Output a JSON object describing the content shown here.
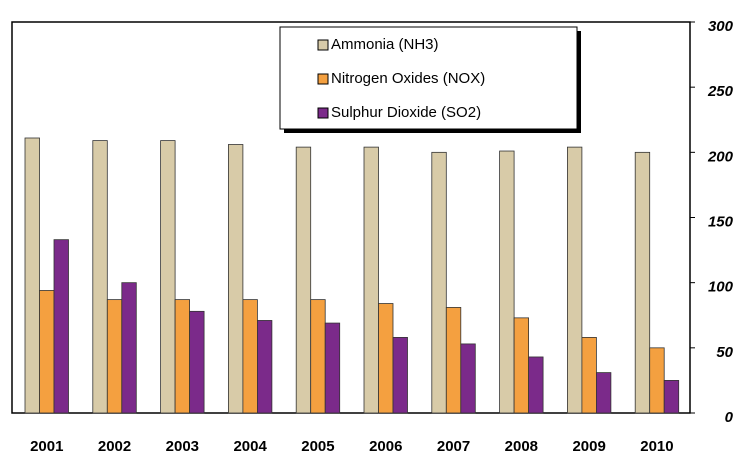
{
  "chart_data": {
    "type": "bar",
    "categories": [
      "2001",
      "2002",
      "2003",
      "2004",
      "2005",
      "2006",
      "2007",
      "2008",
      "2009",
      "2010"
    ],
    "series": [
      {
        "name": "Ammonia (NH3)",
        "color": "#d8cba8",
        "values": [
          211,
          209,
          209,
          206,
          204,
          204,
          200,
          201,
          204,
          200
        ]
      },
      {
        "name": "Nitrogen Oxides (NOX)",
        "color": "#f4a040",
        "values": [
          94,
          87,
          87,
          87,
          87,
          84,
          81,
          73,
          58,
          50
        ]
      },
      {
        "name": "Sulphur Dioxide (SO2)",
        "color": "#7b2a8a",
        "values": [
          133,
          100,
          78,
          71,
          69,
          58,
          53,
          43,
          31,
          25
        ]
      }
    ],
    "ylim": [
      0,
      300
    ],
    "yticks": [
      0,
      50,
      100,
      150,
      200,
      250,
      300
    ],
    "y_axis_side": "right",
    "legend": "top-center"
  }
}
